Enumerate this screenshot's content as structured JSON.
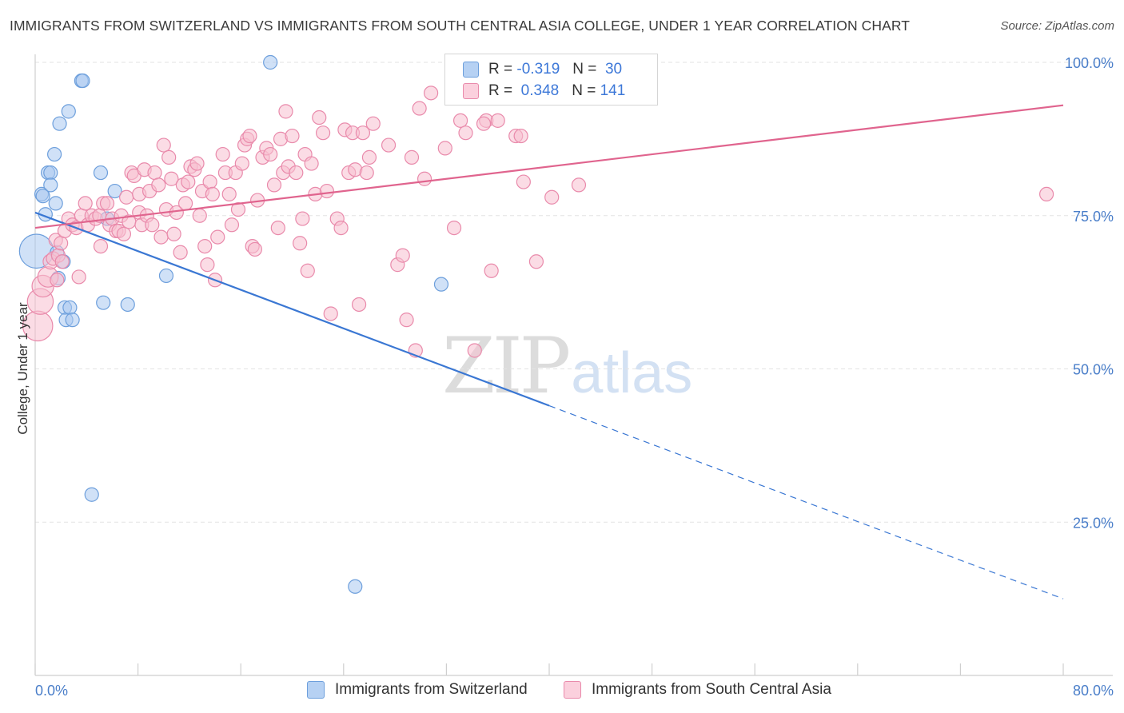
{
  "title": "IMMIGRANTS FROM SWITZERLAND VS IMMIGRANTS FROM SOUTH CENTRAL ASIA COLLEGE, UNDER 1 YEAR CORRELATION CHART",
  "source": "Source: ZipAtlas.com",
  "watermark": {
    "zip": "ZIP",
    "atlas": "atlas"
  },
  "legend": {
    "rows": [
      {
        "r_label": "R =",
        "r_value": "-0.319",
        "n_label": "N =",
        "n_value": "30",
        "color": "#a9c8f0",
        "border": "#6d9fdc"
      },
      {
        "r_label": "R =",
        "r_value": "0.348",
        "n_label": "N =",
        "n_value": "141",
        "color": "#f8bfd0",
        "border": "#e98aab"
      }
    ]
  },
  "bottom_legend": {
    "series_a": "Immigrants from Switzerland",
    "series_b": "Immigrants from South Central Asia"
  },
  "chart_data": {
    "type": "scatter",
    "xlabel": "",
    "ylabel": "College, Under 1 year",
    "xlim": [
      0,
      80
    ],
    "ylim": [
      0,
      100
    ],
    "x_tick_labels": [
      "0.0%",
      "80.0%"
    ],
    "y_tick_labels": [
      "25.0%",
      "50.0%",
      "75.0%",
      "100.0%"
    ],
    "y_ticks": [
      25,
      50,
      75,
      100
    ],
    "grid": true,
    "legend_position": "top-center",
    "series": [
      {
        "name": "Immigrants from Switzerland",
        "color": "#6d9fdc",
        "fill": "#a9c8f0",
        "trend": {
          "x0": 0,
          "y0": 75.5,
          "x_solid_end": 40,
          "x1": 80,
          "y1": 12.5
        },
        "points": [
          [
            0.1,
            69.2,
            2.5
          ],
          [
            0.5,
            78.5,
            1
          ],
          [
            0.6,
            78.2,
            1
          ],
          [
            0.8,
            75.2,
            1
          ],
          [
            1.0,
            82.0,
            1
          ],
          [
            1.2,
            82.0,
            1
          ],
          [
            1.2,
            80.0,
            1
          ],
          [
            1.5,
            85.0,
            1
          ],
          [
            1.6,
            77.0,
            1
          ],
          [
            1.7,
            69.0,
            1
          ],
          [
            1.8,
            64.8,
            1
          ],
          [
            1.9,
            90.0,
            1
          ],
          [
            2.2,
            67.5,
            1
          ],
          [
            2.3,
            60.0,
            1
          ],
          [
            2.4,
            58.0,
            1
          ],
          [
            2.6,
            92.0,
            1
          ],
          [
            2.7,
            60.0,
            1
          ],
          [
            2.9,
            58.0,
            1
          ],
          [
            3.6,
            97.0,
            1
          ],
          [
            3.7,
            97.0,
            1
          ],
          [
            4.4,
            29.5,
            1
          ],
          [
            5.1,
            82.0,
            1
          ],
          [
            5.3,
            60.8,
            1
          ],
          [
            5.6,
            74.5,
            1
          ],
          [
            6.2,
            79.0,
            1
          ],
          [
            7.2,
            60.5,
            1
          ],
          [
            10.2,
            65.2,
            1
          ],
          [
            18.3,
            100.0,
            1
          ],
          [
            24.9,
            14.5,
            1
          ],
          [
            31.6,
            63.8,
            1
          ]
        ]
      },
      {
        "name": "Immigrants from South Central Asia",
        "color": "#e98aab",
        "fill": "#f8bfd0",
        "trend": {
          "x0": 0,
          "y0": 73.0,
          "x1": 80,
          "y1": 93.0
        },
        "points": [
          [
            0.2,
            57.0,
            2.2
          ],
          [
            0.4,
            61.0,
            1.9
          ],
          [
            0.6,
            63.5,
            1.6
          ],
          [
            1.0,
            65.0,
            1.5
          ],
          [
            1.2,
            67.5,
            1.1
          ],
          [
            1.4,
            68.0,
            1.0
          ],
          [
            1.6,
            71.0,
            1
          ],
          [
            1.7,
            64.5,
            1
          ],
          [
            1.8,
            68.5,
            1
          ],
          [
            2.0,
            70.5,
            1
          ],
          [
            2.1,
            67.5,
            1
          ],
          [
            2.3,
            72.5,
            1
          ],
          [
            2.6,
            74.5,
            1
          ],
          [
            2.9,
            73.5,
            1
          ],
          [
            3.2,
            73.0,
            1
          ],
          [
            3.4,
            65.0,
            1
          ],
          [
            3.6,
            75.0,
            1
          ],
          [
            3.9,
            77.0,
            1
          ],
          [
            4.1,
            73.5,
            1
          ],
          [
            4.4,
            75.0,
            1
          ],
          [
            4.7,
            74.5,
            1
          ],
          [
            5.0,
            75.0,
            1
          ],
          [
            5.1,
            70.0,
            1
          ],
          [
            5.3,
            77.0,
            1
          ],
          [
            5.6,
            77.0,
            1
          ],
          [
            5.8,
            73.5,
            1
          ],
          [
            6.0,
            74.5,
            1
          ],
          [
            6.3,
            72.5,
            1
          ],
          [
            6.5,
            72.5,
            1
          ],
          [
            6.7,
            75.0,
            1
          ],
          [
            6.9,
            72.0,
            1
          ],
          [
            7.1,
            78.0,
            1
          ],
          [
            7.3,
            74.0,
            1
          ],
          [
            7.5,
            82.0,
            1
          ],
          [
            7.7,
            81.5,
            1
          ],
          [
            8.1,
            75.5,
            1
          ],
          [
            8.1,
            78.5,
            1
          ],
          [
            8.3,
            73.5,
            1
          ],
          [
            8.5,
            82.5,
            1
          ],
          [
            8.7,
            75.0,
            1
          ],
          [
            8.9,
            79.0,
            1
          ],
          [
            9.1,
            73.5,
            1
          ],
          [
            9.3,
            82.0,
            1
          ],
          [
            9.6,
            80.0,
            1
          ],
          [
            9.8,
            71.5,
            1
          ],
          [
            10.0,
            86.5,
            1
          ],
          [
            10.2,
            76.0,
            1
          ],
          [
            10.4,
            84.5,
            1
          ],
          [
            10.6,
            81.0,
            1
          ],
          [
            10.8,
            72.0,
            1
          ],
          [
            11.0,
            75.5,
            1
          ],
          [
            11.3,
            69.0,
            1
          ],
          [
            11.5,
            80.0,
            1
          ],
          [
            11.7,
            77.0,
            1
          ],
          [
            11.9,
            80.5,
            1
          ],
          [
            12.1,
            83.0,
            1
          ],
          [
            12.4,
            82.5,
            1
          ],
          [
            12.6,
            83.5,
            1
          ],
          [
            12.8,
            75.0,
            1
          ],
          [
            13.0,
            79.0,
            1
          ],
          [
            13.2,
            70.0,
            1
          ],
          [
            13.4,
            67.0,
            1
          ],
          [
            13.6,
            80.5,
            1
          ],
          [
            13.8,
            78.5,
            1
          ],
          [
            14.0,
            64.5,
            1
          ],
          [
            14.2,
            71.5,
            1
          ],
          [
            14.6,
            85.0,
            1
          ],
          [
            14.8,
            82.0,
            1
          ],
          [
            15.1,
            78.5,
            1
          ],
          [
            15.3,
            73.5,
            1
          ],
          [
            15.6,
            82.0,
            1
          ],
          [
            15.8,
            76.0,
            1
          ],
          [
            16.1,
            83.5,
            1
          ],
          [
            16.3,
            86.5,
            1
          ],
          [
            16.5,
            87.5,
            1
          ],
          [
            16.7,
            88.0,
            1
          ],
          [
            16.9,
            70.0,
            1
          ],
          [
            17.1,
            69.5,
            1
          ],
          [
            17.3,
            77.5,
            1
          ],
          [
            17.7,
            84.5,
            1
          ],
          [
            18.0,
            86.0,
            1
          ],
          [
            18.3,
            85.0,
            1
          ],
          [
            18.6,
            80.0,
            1
          ],
          [
            18.9,
            73.0,
            1
          ],
          [
            19.1,
            87.5,
            1
          ],
          [
            19.3,
            82.0,
            1
          ],
          [
            19.5,
            92.0,
            1
          ],
          [
            19.7,
            83.0,
            1
          ],
          [
            20.0,
            88.0,
            1
          ],
          [
            20.3,
            82.0,
            1
          ],
          [
            20.6,
            70.5,
            1
          ],
          [
            20.8,
            74.5,
            1
          ],
          [
            21.0,
            85.0,
            1
          ],
          [
            21.2,
            66.0,
            1
          ],
          [
            21.5,
            83.5,
            1
          ],
          [
            21.8,
            78.5,
            1
          ],
          [
            22.1,
            91.0,
            1
          ],
          [
            22.4,
            88.5,
            1
          ],
          [
            22.7,
            79.0,
            1
          ],
          [
            23.0,
            59.0,
            1
          ],
          [
            23.5,
            74.5,
            1
          ],
          [
            23.8,
            73.0,
            1
          ],
          [
            24.1,
            89.0,
            1
          ],
          [
            24.4,
            82.0,
            1
          ],
          [
            24.7,
            88.5,
            1
          ],
          [
            24.9,
            82.5,
            1
          ],
          [
            25.2,
            60.5,
            1
          ],
          [
            25.5,
            88.5,
            1
          ],
          [
            25.8,
            82.0,
            1
          ],
          [
            26.0,
            84.5,
            1
          ],
          [
            26.3,
            90.0,
            1
          ],
          [
            27.5,
            86.5,
            1
          ],
          [
            28.2,
            67.0,
            1
          ],
          [
            28.6,
            68.5,
            1
          ],
          [
            28.9,
            58.0,
            1
          ],
          [
            29.3,
            84.5,
            1
          ],
          [
            29.6,
            53.0,
            1
          ],
          [
            29.9,
            92.5,
            1
          ],
          [
            30.3,
            81.0,
            1
          ],
          [
            30.8,
            95.0,
            1
          ],
          [
            31.9,
            86.0,
            1
          ],
          [
            32.6,
            73.0,
            1
          ],
          [
            33.1,
            90.5,
            1
          ],
          [
            33.5,
            88.5,
            1
          ],
          [
            34.2,
            53.0,
            1
          ],
          [
            35.1,
            90.5,
            1
          ],
          [
            35.5,
            66.0,
            1
          ],
          [
            36.5,
            95.0,
            1
          ],
          [
            37.4,
            88.0,
            1
          ],
          [
            37.8,
            88.0,
            1
          ],
          [
            38.0,
            80.5,
            1
          ],
          [
            39.0,
            67.5,
            1
          ],
          [
            40.2,
            78.0,
            1
          ],
          [
            42.3,
            80.0,
            1
          ],
          [
            78.7,
            78.5,
            1
          ],
          [
            36.0,
            90.5,
            1
          ],
          [
            34.9,
            90.0,
            1
          ]
        ]
      }
    ]
  }
}
